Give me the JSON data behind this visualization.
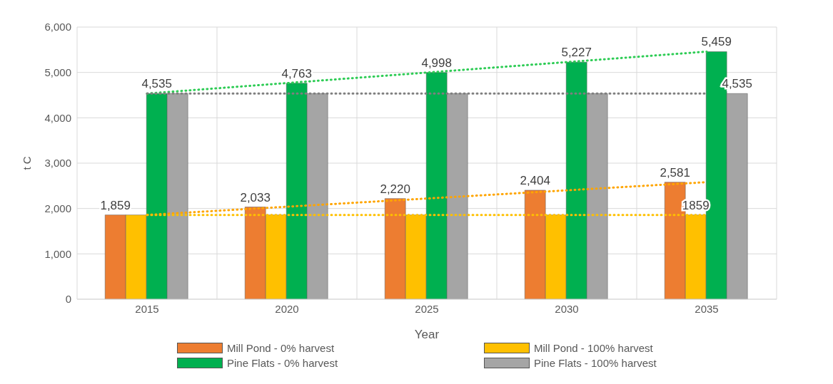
{
  "chart_data": {
    "type": "bar",
    "xlabel": "Year",
    "ylabel": "t C",
    "categories": [
      "2015",
      "2020",
      "2025",
      "2030",
      "2035"
    ],
    "series": [
      {
        "name": "Mill Pond - 0% harvest",
        "color": "#ed7d31",
        "values": [
          1859,
          2033,
          2220,
          2404,
          2581
        ],
        "value_labels": [
          "1,859",
          "2,033",
          "2,220",
          "2,404",
          "2,581"
        ]
      },
      {
        "name": "Mill Pond - 100% harvest",
        "color": "#ffc000",
        "values": [
          1859,
          1859,
          1859,
          1859,
          1859
        ],
        "value_labels": [
          null,
          null,
          null,
          null,
          "1859"
        ]
      },
      {
        "name": "Pine Flats - 0% harvest",
        "color": "#00b050",
        "values": [
          4535,
          4763,
          4998,
          5227,
          5459
        ],
        "value_labels": [
          "4,535",
          "4,763",
          "4,998",
          "5,227",
          "5,459"
        ]
      },
      {
        "name": "Pine Flats - 100% harvest",
        "color": "#a5a5a5",
        "values": [
          4535,
          4535,
          4535,
          4535,
          4535
        ],
        "value_labels": [
          null,
          null,
          null,
          null,
          "4,535"
        ]
      },
      {
        "type": "line",
        "color": "#ffa500",
        "values": [
          1859,
          null,
          null,
          null,
          2581
        ]
      },
      {
        "type": "line",
        "color": "#ffc000",
        "values": [
          1859,
          null,
          null,
          null,
          1859
        ]
      },
      {
        "type": "line",
        "color": "#2ecc55",
        "values": [
          4535,
          null,
          null,
          null,
          5459
        ]
      },
      {
        "type": "line",
        "color": "#7f7f7f",
        "values": [
          4535,
          null,
          null,
          null,
          4535
        ]
      }
    ],
    "ylim": [
      0,
      6000
    ],
    "yticks": [
      0,
      {
        "value": 1000,
        "label": "1,000"
      },
      {
        "value": 2000,
        "label": "2,000"
      },
      {
        "value": 3000,
        "label": "3,000"
      },
      {
        "value": 4000,
        "label": "4,000"
      },
      {
        "value": 5000,
        "label": "5,000"
      },
      {
        "value": 6000,
        "label": "6,000"
      }
    ],
    "grid": true,
    "legend": "bottom",
    "marker": "none",
    "line_style": "dotted"
  }
}
